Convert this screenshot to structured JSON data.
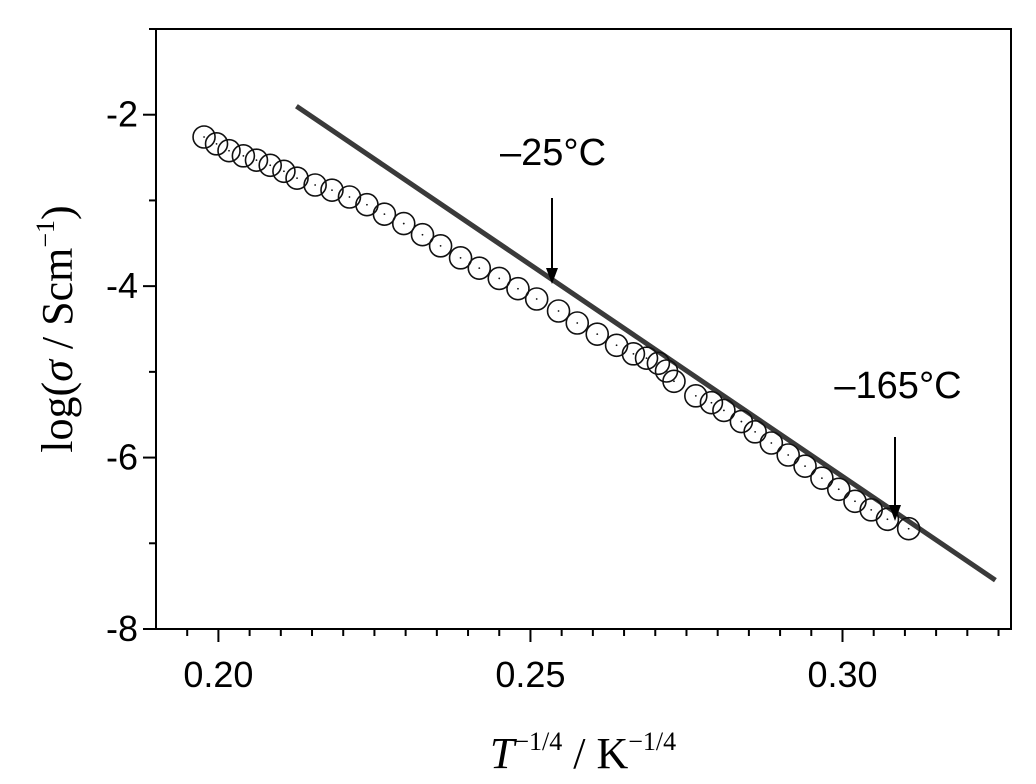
{
  "chart_data": {
    "type": "scatter",
    "xlabel": {
      "base": "T",
      "sup1": "−1/4",
      "mid": " / K",
      "sup2": "−1/4"
    },
    "ylabel": {
      "pre": "log(",
      "sym": "σ",
      "mid": " / Scm",
      "sup": "−1",
      "post": ")"
    },
    "xlim": [
      0.19,
      0.327
    ],
    "ylim": [
      -8,
      -1
    ],
    "x_ticks": [
      0.2,
      0.25,
      0.3
    ],
    "x_tick_labels": [
      "0.20",
      "0.25",
      "0.30"
    ],
    "y_ticks": [
      -2,
      -4,
      -6,
      -8
    ],
    "y_tick_labels": [
      "-2",
      "-4",
      "-6",
      "-8"
    ],
    "grid": false,
    "series": [
      {
        "marker": "open-circle",
        "x": [
          0.1977,
          0.1997,
          0.2017,
          0.204,
          0.2061,
          0.2083,
          0.2105,
          0.2126,
          0.2155,
          0.2182,
          0.221,
          0.2238,
          0.2266,
          0.2297,
          0.2327,
          0.2356,
          0.2388,
          0.2418,
          0.245,
          0.248,
          0.251,
          0.2545,
          0.2575,
          0.2607,
          0.2638,
          0.2665,
          0.2686,
          0.2705,
          0.2718,
          0.273,
          0.2765,
          0.279,
          0.281,
          0.2838,
          0.286,
          0.2886,
          0.2913,
          0.294,
          0.2967,
          0.2994,
          0.302,
          0.3046,
          0.3072,
          0.3106
        ],
        "y": [
          -2.26,
          -2.34,
          -2.42,
          -2.48,
          -2.53,
          -2.59,
          -2.66,
          -2.74,
          -2.82,
          -2.88,
          -2.96,
          -3.05,
          -3.16,
          -3.27,
          -3.4,
          -3.53,
          -3.67,
          -3.79,
          -3.91,
          -4.03,
          -4.15,
          -4.29,
          -4.43,
          -4.56,
          -4.69,
          -4.79,
          -4.84,
          -4.9,
          -4.99,
          -5.11,
          -5.28,
          -5.36,
          -5.45,
          -5.58,
          -5.7,
          -5.83,
          -5.97,
          -6.1,
          -6.24,
          -6.37,
          -6.51,
          -6.61,
          -6.72,
          -6.83
        ]
      }
    ],
    "fit_line": {
      "x": [
        0.2125,
        0.3245
      ],
      "y": [
        -1.9,
        -7.43
      ]
    },
    "annotations": [
      {
        "text": "–25°C",
        "x": 0.2553,
        "y": -4.0
      },
      {
        "text": "–165°C",
        "x": 0.3107,
        "y": -6.82
      }
    ]
  }
}
